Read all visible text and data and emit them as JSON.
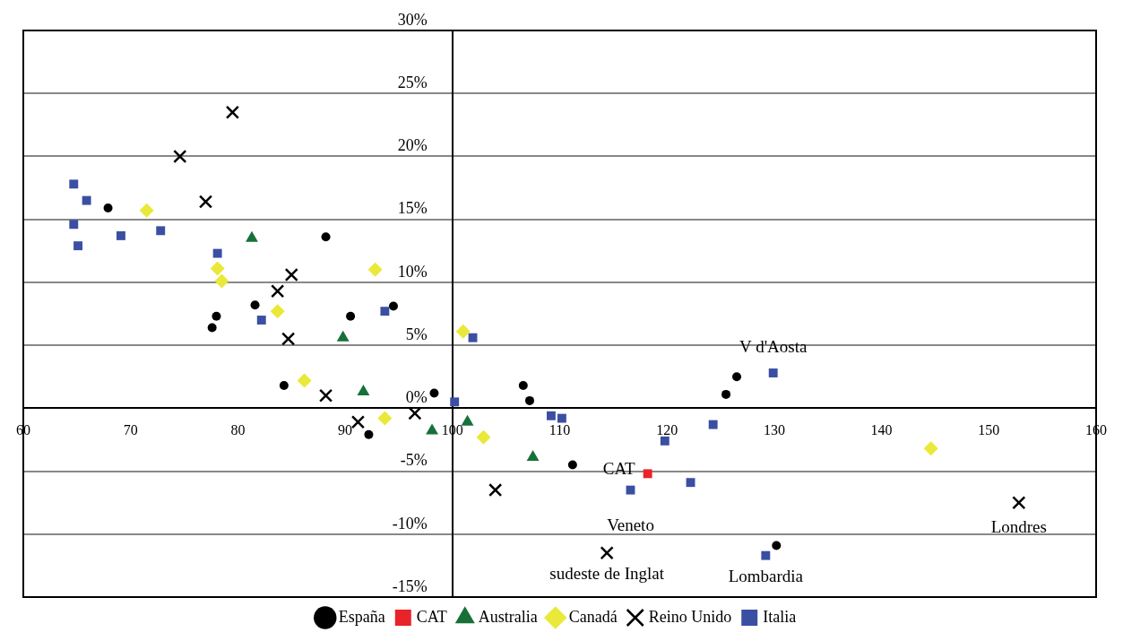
{
  "chart_data": {
    "type": "scatter",
    "xlim": [
      60,
      160
    ],
    "ylim": [
      -15,
      30
    ],
    "xticks": [
      60,
      70,
      80,
      90,
      100,
      110,
      120,
      130,
      140,
      150,
      160
    ],
    "yticks": [
      {
        "value": -15,
        "label": "-15%"
      },
      {
        "value": -10,
        "label": "-10%"
      },
      {
        "value": -5,
        "label": "-5%"
      },
      {
        "value": 0,
        "label": "0%"
      },
      {
        "value": 5,
        "label": "5%"
      },
      {
        "value": 10,
        "label": "10%"
      },
      {
        "value": 15,
        "label": "15%"
      },
      {
        "value": 20,
        "label": "20%"
      },
      {
        "value": 25,
        "label": "25%"
      },
      {
        "value": 30,
        "label": "30%"
      }
    ],
    "grid": "y",
    "legend": "bottom",
    "series": [
      {
        "name": "España",
        "color": "#000000",
        "marker": "circle",
        "x": [
          67.9,
          77.6,
          78.0,
          81.6,
          88.2,
          84.3,
          90.5,
          94.5,
          92.2,
          98.3,
          106.6,
          107.2,
          111.2,
          125.5,
          126.5,
          130.2
        ],
        "values": [
          15.9,
          6.4,
          7.3,
          8.2,
          13.6,
          1.8,
          7.3,
          8.1,
          -2.1,
          1.2,
          1.8,
          0.6,
          -4.5,
          1.1,
          2.5,
          -10.9
        ]
      },
      {
        "name": "CAT",
        "color": "#e8232a",
        "marker": "square",
        "x": [
          118.2
        ],
        "values": [
          -5.2
        ]
      },
      {
        "name": "Australia",
        "color": "#177038",
        "marker": "triangle",
        "x": [
          81.3,
          89.8,
          91.7,
          98.1,
          101.4,
          107.5
        ],
        "values": [
          13.5,
          5.6,
          1.3,
          -1.8,
          -1.1,
          -3.9
        ]
      },
      {
        "name": "Canadá",
        "color": "#eae838",
        "marker": "diamond",
        "x": [
          71.5,
          78.1,
          78.5,
          83.7,
          86.2,
          92.8,
          93.7,
          101.0,
          102.9,
          144.6
        ],
        "values": [
          15.7,
          11.1,
          10.1,
          7.7,
          2.2,
          11.0,
          -0.8,
          6.1,
          -2.3,
          -3.2
        ]
      },
      {
        "name": "Reino Unido",
        "color": "#000000",
        "marker": "cross",
        "x": [
          79.5,
          74.6,
          77.0,
          83.7,
          85.0,
          84.7,
          88.2,
          91.2,
          96.5,
          104.0,
          114.4,
          152.8
        ],
        "values": [
          23.5,
          20.0,
          16.4,
          9.3,
          10.6,
          5.5,
          1.0,
          -1.1,
          -0.4,
          -6.5,
          -11.5,
          -7.5
        ]
      },
      {
        "name": "Italia",
        "color": "#3a4fa3",
        "marker": "square",
        "x": [
          64.7,
          65.9,
          64.7,
          65.1,
          69.1,
          72.8,
          78.1,
          82.2,
          93.7,
          101.9,
          100.2,
          109.2,
          110.2,
          119.8,
          124.3,
          129.9,
          116.6,
          122.2,
          129.2
        ],
        "values": [
          17.8,
          16.5,
          14.6,
          12.9,
          13.7,
          14.1,
          12.3,
          7.0,
          7.7,
          5.6,
          0.5,
          -0.6,
          -0.8,
          -2.6,
          -1.3,
          2.8,
          -6.5,
          -5.9,
          -11.7
        ]
      }
    ],
    "annotations": [
      {
        "text": "V d'Aosta",
        "x": 129.9,
        "y": 2.8
      },
      {
        "text": "CAT",
        "x": 118.2,
        "y": -5.2
      },
      {
        "text": "Veneto",
        "x": 116.6,
        "y": -6.5
      },
      {
        "text": "sudeste de Inglat",
        "x": 114.4,
        "y": -11.5
      },
      {
        "text": "Lombardia",
        "x": 129.2,
        "y": -11.7
      },
      {
        "text": "Londres",
        "x": 152.8,
        "y": -7.5
      }
    ]
  }
}
